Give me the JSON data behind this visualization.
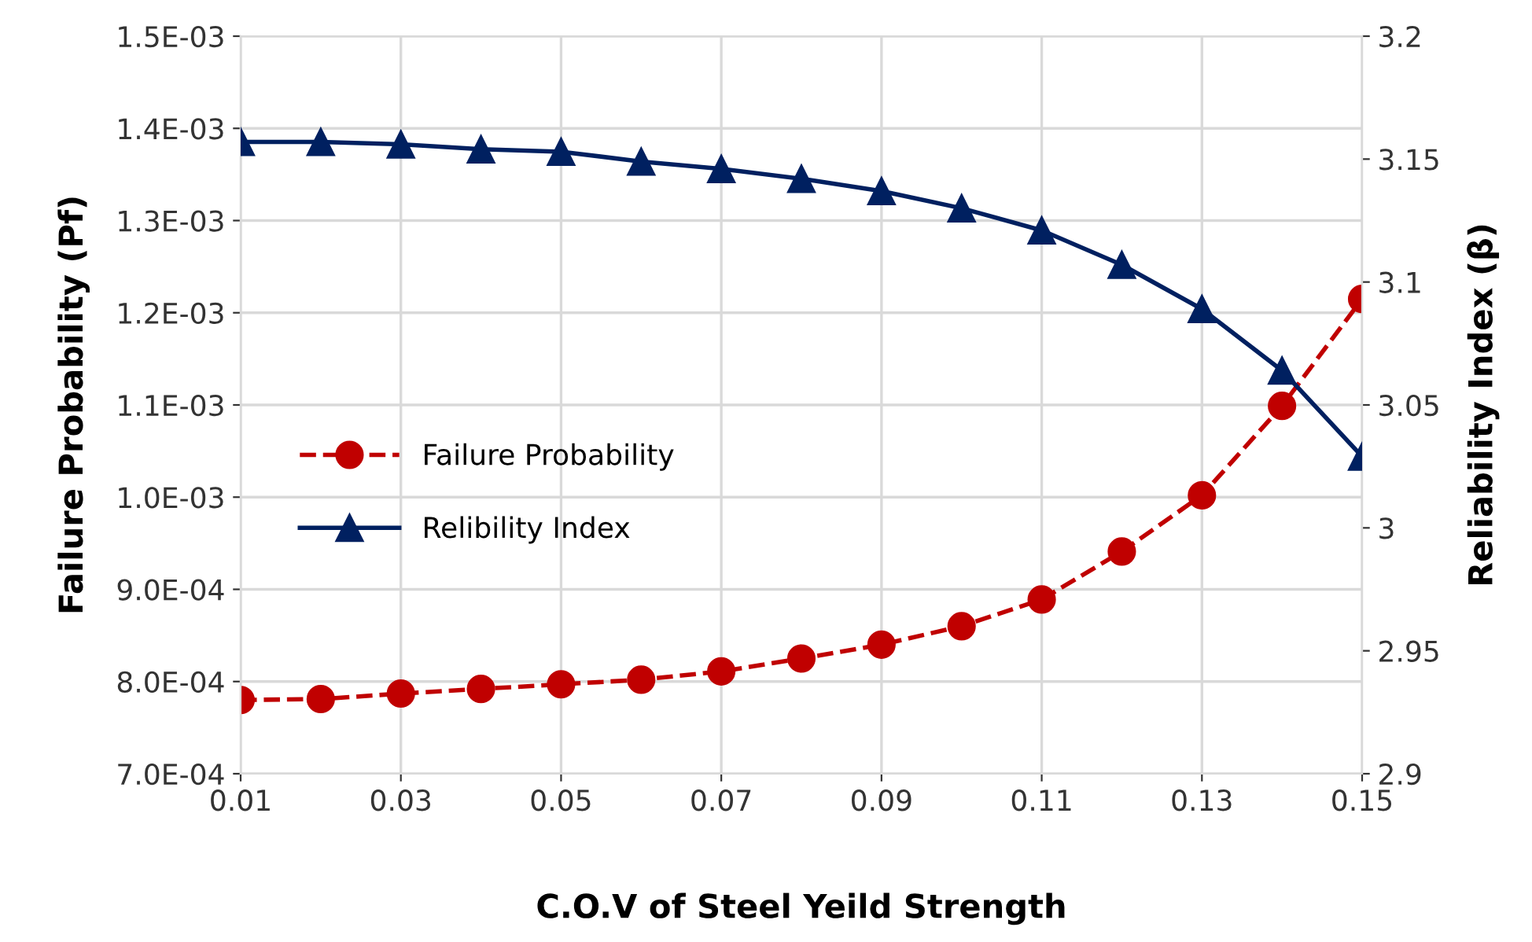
{
  "chart_data": {
    "type": "line",
    "xlabel": "C.O.V of Steel Yeild Strength",
    "ylabel": "Failure Probability (Pf)",
    "y2label": "Reliability Index (β)",
    "x": [
      0.01,
      0.02,
      0.03,
      0.04,
      0.05,
      0.06,
      0.07,
      0.08,
      0.09,
      0.1,
      0.11,
      0.12,
      0.13,
      0.14,
      0.15
    ],
    "series": [
      {
        "name": "Failure Probability",
        "color": "#c00000",
        "marker": "circle",
        "line_style": "dashed",
        "values": [
          0.00078,
          0.000781,
          0.000787,
          0.000792,
          0.000797,
          0.000802,
          0.000811,
          0.000825,
          0.00084,
          0.00086,
          0.000889,
          0.000941,
          0.001002,
          0.001099,
          0.001215
        ]
      },
      {
        "name": "Relibility Index",
        "color": "#002060",
        "marker": "triangle",
        "line_style": "solid",
        "axis": "y2",
        "values": [
          3.157,
          3.157,
          3.156,
          3.154,
          3.153,
          3.149,
          3.146,
          3.142,
          3.137,
          3.13,
          3.121,
          3.107,
          3.089,
          3.064,
          3.029
        ]
      }
    ],
    "xlim": [
      0.01,
      0.15
    ],
    "xticks": [
      {
        "value": 0.01,
        "label": "0.01"
      },
      {
        "value": 0.03,
        "label": "0.03"
      },
      {
        "value": 0.05,
        "label": "0.05"
      },
      {
        "value": 0.07,
        "label": "0.07"
      },
      {
        "value": 0.09,
        "label": "0.09"
      },
      {
        "value": 0.11,
        "label": "0.11"
      },
      {
        "value": 0.13,
        "label": "0.13"
      },
      {
        "value": 0.15,
        "label": "0.15"
      }
    ],
    "ylim": [
      0.0007,
      0.0015
    ],
    "yticks": [
      {
        "value": 0.0007,
        "label": "7.0E-04"
      },
      {
        "value": 0.0008,
        "label": "8.0E-04"
      },
      {
        "value": 0.0009,
        "label": "9.0E-04"
      },
      {
        "value": 0.001,
        "label": "1.0E-03"
      },
      {
        "value": 0.0011,
        "label": "1.1E-03"
      },
      {
        "value": 0.0012,
        "label": "1.2E-03"
      },
      {
        "value": 0.0013,
        "label": "1.3E-03"
      },
      {
        "value": 0.0014,
        "label": "1.4E-03"
      },
      {
        "value": 0.0015,
        "label": "1.5E-03"
      }
    ],
    "y2lim": [
      2.9,
      3.2
    ],
    "y2ticks": [
      2.9,
      2.95,
      3,
      3.05,
      3.1,
      3.15,
      3.2
    ],
    "grid": true,
    "legend": "left"
  }
}
